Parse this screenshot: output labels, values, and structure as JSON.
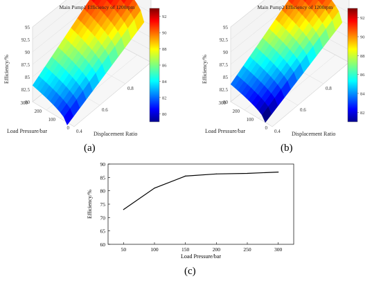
{
  "panel_labels": [
    "(a)",
    "(b)",
    "(c)"
  ],
  "chart_data": [
    {
      "type": "surface3d",
      "panel": "(a)",
      "title": "Main Pump1 Efficiency of 1200rpm",
      "xlabel": "Displacement Ratio",
      "ylabel": "Load Pressure/bar",
      "zlabel": "Efficiency/%",
      "xticks": [
        "0.4",
        "0.6",
        "0.8",
        "1"
      ],
      "yticks": [
        "0",
        "100",
        "200",
        "300"
      ],
      "zticks": [
        "80",
        "82.5",
        "85",
        "87.5",
        "90",
        "92.5",
        "95"
      ],
      "xlim": [
        0.4,
        1.0
      ],
      "ylim": [
        0,
        300
      ],
      "zlim": [
        80,
        95
      ],
      "colormap": "jet",
      "colorbar_range": [
        79,
        93
      ],
      "colorbar_ticks": [
        "80",
        "82",
        "84",
        "86",
        "88",
        "90",
        "92"
      ],
      "surface_range": {
        "displacement_ratio": [
          0.4,
          1.0
        ],
        "load_pressure_bar": [
          50,
          300
        ],
        "efficiency_min": 79.5,
        "efficiency_max": 93.5
      }
    },
    {
      "type": "surface3d",
      "panel": "(b)",
      "title": "Main Pump2 Efficiency of 1200rpm",
      "xlabel": "Displacement Ratio",
      "ylabel": "Load Pressure/bar",
      "zlabel": "Efficiency/%",
      "xticks": [
        "0.4",
        "0.6",
        "0.8",
        "1"
      ],
      "yticks": [
        "0",
        "100",
        "200",
        "300"
      ],
      "zticks": [
        "80",
        "82.5",
        "85",
        "87.5",
        "90",
        "92.5",
        "95"
      ],
      "xlim": [
        0.4,
        1.0
      ],
      "ylim": [
        0,
        300
      ],
      "zlim": [
        80,
        95
      ],
      "colormap": "jet",
      "colorbar_range": [
        81,
        93
      ],
      "colorbar_ticks": [
        "82",
        "84",
        "86",
        "88",
        "90",
        "92"
      ],
      "surface_range": {
        "displacement_ratio": [
          0.4,
          1.0
        ],
        "load_pressure_bar": [
          50,
          300
        ],
        "efficiency_min": 80,
        "efficiency_max": 93
      }
    },
    {
      "type": "line",
      "panel": "(c)",
      "xlabel": "Load Pressure/bar",
      "ylabel": "Efficiency/%",
      "x": [
        50,
        100,
        150,
        200,
        250,
        300
      ],
      "y": [
        73,
        81,
        85.5,
        86.3,
        86.5,
        87
      ],
      "xticks": [
        "50",
        "100",
        "150",
        "200",
        "250",
        "300"
      ],
      "yticks": [
        "60",
        "65",
        "70",
        "75",
        "80",
        "85",
        "90"
      ],
      "xlim": [
        25,
        325
      ],
      "ylim": [
        60,
        90
      ],
      "grid": false,
      "line_color": "#000000"
    }
  ]
}
